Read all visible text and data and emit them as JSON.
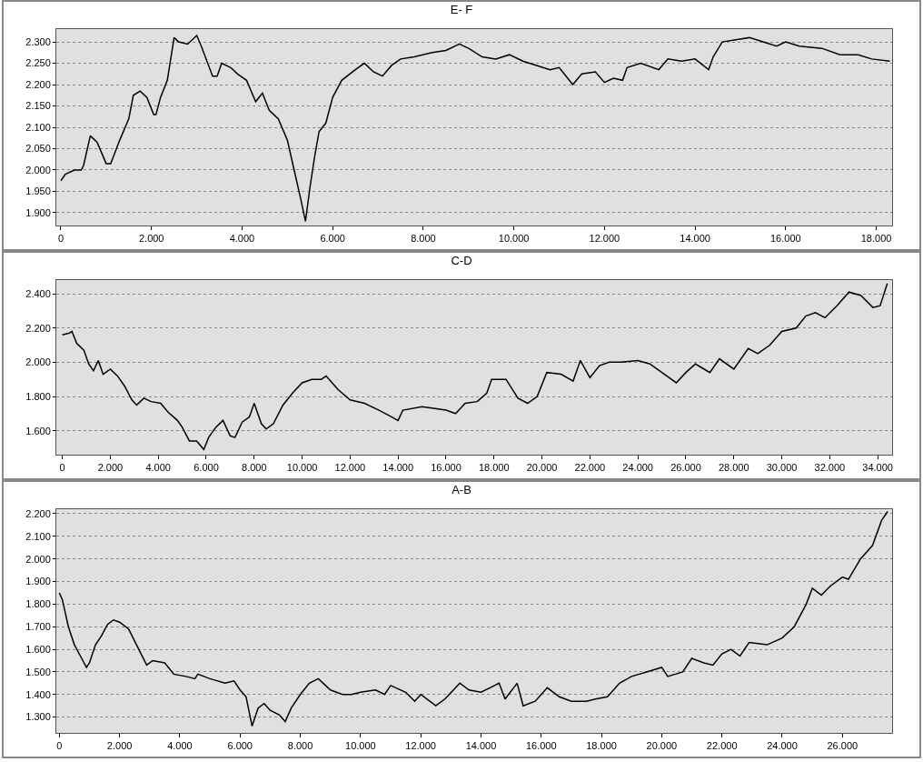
{
  "chart_data": [
    {
      "type": "line",
      "title": "E- F",
      "grid": "y",
      "marker": "none",
      "line_style": "solid",
      "xlim": [
        -100,
        18350
      ],
      "ylim": [
        1870,
        2330
      ],
      "xticks": [
        {
          "value": 0,
          "label": "0"
        },
        {
          "value": 2000,
          "label": "2.000"
        },
        {
          "value": 4000,
          "label": "4.000"
        },
        {
          "value": 6000,
          "label": "6.000"
        },
        {
          "value": 8000,
          "label": "8.000"
        },
        {
          "value": 10000,
          "label": "10.000"
        },
        {
          "value": 12000,
          "label": "12.000"
        },
        {
          "value": 14000,
          "label": "14.000"
        },
        {
          "value": 16000,
          "label": "16.000"
        },
        {
          "value": 18000,
          "label": "18.000"
        }
      ],
      "yticks": [
        {
          "value": 1900,
          "label": "1.900"
        },
        {
          "value": 1950,
          "label": "1.950"
        },
        {
          "value": 2000,
          "label": "2.000"
        },
        {
          "value": 2050,
          "label": "2.050"
        },
        {
          "value": 2100,
          "label": "2.100"
        },
        {
          "value": 2150,
          "label": "2.150"
        },
        {
          "value": 2200,
          "label": "2.200"
        },
        {
          "value": 2250,
          "label": "2.250"
        },
        {
          "value": 2300,
          "label": "2.300"
        }
      ],
      "series": [
        {
          "color": "#000000",
          "x": [
            0,
            100,
            300,
            450,
            500,
            650,
            800,
            1000,
            1100,
            1300,
            1500,
            1600,
            1750,
            1900,
            2050,
            2100,
            2200,
            2350,
            2500,
            2600,
            2800,
            3000,
            3100,
            3350,
            3450,
            3550,
            3750,
            3900,
            4100,
            4300,
            4450,
            4600,
            4800,
            5000,
            5150,
            5300,
            5400,
            5500,
            5600,
            5700,
            5850,
            6000,
            6200,
            6500,
            6700,
            6900,
            7100,
            7300,
            7500,
            7800,
            8200,
            8500,
            8800,
            9000,
            9300,
            9600,
            9900,
            10200,
            10500,
            10800,
            11000,
            11300,
            11500,
            11800,
            12000,
            12200,
            12400,
            12500,
            12800,
            13200,
            13400,
            13700,
            14000,
            14300,
            14400,
            14600,
            14900,
            15200,
            15500,
            15800,
            16000,
            16300,
            16800,
            17200,
            17600,
            17900,
            18300
          ],
          "values": [
            1975,
            1990,
            2000,
            2000,
            2010,
            2080,
            2065,
            2015,
            2015,
            2070,
            2120,
            2175,
            2185,
            2170,
            2130,
            2130,
            2170,
            2210,
            2310,
            2300,
            2295,
            2315,
            2290,
            2220,
            2220,
            2250,
            2240,
            2225,
            2210,
            2160,
            2180,
            2140,
            2120,
            2070,
            2000,
            1930,
            1880,
            1960,
            2030,
            2090,
            2110,
            2170,
            2210,
            2235,
            2250,
            2230,
            2220,
            2245,
            2260,
            2265,
            2275,
            2280,
            2295,
            2285,
            2265,
            2260,
            2270,
            2255,
            2245,
            2235,
            2240,
            2200,
            2225,
            2230,
            2205,
            2215,
            2210,
            2240,
            2250,
            2235,
            2260,
            2255,
            2260,
            2235,
            2265,
            2300,
            2305,
            2310,
            2300,
            2290,
            2300,
            2290,
            2285,
            2270,
            2270,
            2260,
            2255
          ]
        }
      ]
    },
    {
      "type": "line",
      "title": "C-D",
      "grid": "y",
      "marker": "none",
      "line_style": "solid",
      "xlim": [
        -250,
        34600
      ],
      "ylim": [
        1460,
        2480
      ],
      "xticks": [
        {
          "value": 0,
          "label": "0"
        },
        {
          "value": 2000,
          "label": "2.000"
        },
        {
          "value": 4000,
          "label": "4.000"
        },
        {
          "value": 6000,
          "label": "6.000"
        },
        {
          "value": 8000,
          "label": "8.000"
        },
        {
          "value": 10000,
          "label": "10.000"
        },
        {
          "value": 12000,
          "label": "12.000"
        },
        {
          "value": 14000,
          "label": "14.000"
        },
        {
          "value": 16000,
          "label": "16.000"
        },
        {
          "value": 18000,
          "label": "18.000"
        },
        {
          "value": 20000,
          "label": "20.000"
        },
        {
          "value": 22000,
          "label": "22.000"
        },
        {
          "value": 24000,
          "label": "24.000"
        },
        {
          "value": 26000,
          "label": "26.000"
        },
        {
          "value": 28000,
          "label": "28.000"
        },
        {
          "value": 30000,
          "label": "30.000"
        },
        {
          "value": 32000,
          "label": "32.000"
        },
        {
          "value": 34000,
          "label": "34.000"
        }
      ],
      "yticks": [
        {
          "value": 1600,
          "label": "1.600"
        },
        {
          "value": 1800,
          "label": "1.800"
        },
        {
          "value": 2000,
          "label": "2.000"
        },
        {
          "value": 2200,
          "label": "2.200"
        },
        {
          "value": 2400,
          "label": "2.400"
        }
      ],
      "series": [
        {
          "color": "#000000",
          "x": [
            0,
            300,
            400,
            600,
            900,
            1100,
            1300,
            1500,
            1700,
            2000,
            2300,
            2600,
            2900,
            3100,
            3400,
            3700,
            4100,
            4400,
            4800,
            5000,
            5300,
            5600,
            5900,
            6100,
            6400,
            6700,
            7000,
            7200,
            7500,
            7800,
            8000,
            8300,
            8500,
            8800,
            9200,
            9600,
            10000,
            10400,
            10800,
            11000,
            11500,
            12000,
            12600,
            13200,
            13600,
            14000,
            14200,
            15000,
            16000,
            16400,
            16800,
            17300,
            17700,
            17900,
            18500,
            19000,
            19400,
            19800,
            20200,
            20800,
            21300,
            21600,
            22000,
            22400,
            22800,
            23300,
            24000,
            24500,
            25000,
            25600,
            26000,
            26400,
            27000,
            27400,
            28000,
            28600,
            29000,
            29500,
            30000,
            30600,
            31000,
            31400,
            31800,
            32300,
            32800,
            33300,
            33800,
            34100,
            34400
          ],
          "values": [
            2160,
            2170,
            2180,
            2110,
            2070,
            1990,
            1950,
            2010,
            1930,
            1960,
            1920,
            1860,
            1780,
            1750,
            1790,
            1770,
            1760,
            1710,
            1660,
            1620,
            1540,
            1540,
            1490,
            1560,
            1620,
            1660,
            1570,
            1560,
            1650,
            1680,
            1760,
            1640,
            1610,
            1640,
            1750,
            1820,
            1880,
            1900,
            1900,
            1920,
            1840,
            1780,
            1760,
            1720,
            1690,
            1660,
            1720,
            1740,
            1720,
            1700,
            1760,
            1770,
            1820,
            1900,
            1900,
            1790,
            1760,
            1800,
            1940,
            1930,
            1890,
            2010,
            1910,
            1980,
            2000,
            2000,
            2010,
            1990,
            1940,
            1880,
            1940,
            1990,
            1940,
            2020,
            1960,
            2080,
            2050,
            2100,
            2180,
            2200,
            2270,
            2290,
            2260,
            2330,
            2410,
            2390,
            2320,
            2330,
            2460
          ]
        }
      ]
    },
    {
      "type": "line",
      "title": "A-B",
      "grid": "y",
      "marker": "none",
      "line_style": "solid",
      "xlim": [
        -100,
        27650
      ],
      "ylim": [
        1230,
        2220
      ],
      "xticks": [
        {
          "value": 0,
          "label": "0"
        },
        {
          "value": 2000,
          "label": "2.000"
        },
        {
          "value": 4000,
          "label": "4.000"
        },
        {
          "value": 6000,
          "label": "6.000"
        },
        {
          "value": 8000,
          "label": "8.000"
        },
        {
          "value": 10000,
          "label": "10.000"
        },
        {
          "value": 12000,
          "label": "12.000"
        },
        {
          "value": 14000,
          "label": "14.000"
        },
        {
          "value": 16000,
          "label": "16.000"
        },
        {
          "value": 18000,
          "label": "18.000"
        },
        {
          "value": 20000,
          "label": "20.000"
        },
        {
          "value": 22000,
          "label": "22.000"
        },
        {
          "value": 24000,
          "label": "24.000"
        },
        {
          "value": 26000,
          "label": "26.000"
        }
      ],
      "yticks": [
        {
          "value": 1300,
          "label": "1.300"
        },
        {
          "value": 1400,
          "label": "1.400"
        },
        {
          "value": 1500,
          "label": "1.500"
        },
        {
          "value": 1600,
          "label": "1.600"
        },
        {
          "value": 1700,
          "label": "1.700"
        },
        {
          "value": 1800,
          "label": "1.800"
        },
        {
          "value": 1900,
          "label": "1.900"
        },
        {
          "value": 2000,
          "label": "2.000"
        },
        {
          "value": 2100,
          "label": "2.100"
        },
        {
          "value": 2200,
          "label": "2.200"
        }
      ],
      "series": [
        {
          "color": "#000000",
          "x": [
            0,
            100,
            300,
            500,
            700,
            900,
            1000,
            1200,
            1400,
            1600,
            1800,
            2000,
            2300,
            2600,
            2900,
            3100,
            3500,
            3800,
            4200,
            4500,
            4600,
            5000,
            5500,
            5800,
            6000,
            6200,
            6400,
            6600,
            6800,
            7000,
            7300,
            7500,
            7700,
            8000,
            8300,
            8600,
            9000,
            9400,
            9700,
            10000,
            10500,
            10800,
            11000,
            11500,
            11800,
            12000,
            12300,
            12500,
            12800,
            13300,
            13600,
            14000,
            14300,
            14600,
            14800,
            15200,
            15400,
            15800,
            16200,
            16600,
            17000,
            17500,
            17800,
            18200,
            18600,
            19000,
            19500,
            20000,
            20200,
            20700,
            21000,
            21400,
            21700,
            22000,
            22300,
            22600,
            22900,
            23500,
            24000,
            24400,
            24800,
            25000,
            25300,
            25600,
            26000,
            26200,
            26600,
            27000,
            27300,
            27500
          ],
          "values": [
            1850,
            1820,
            1700,
            1620,
            1570,
            1520,
            1540,
            1620,
            1660,
            1710,
            1730,
            1720,
            1690,
            1610,
            1530,
            1550,
            1540,
            1490,
            1480,
            1470,
            1490,
            1470,
            1450,
            1460,
            1420,
            1390,
            1260,
            1340,
            1360,
            1330,
            1310,
            1280,
            1340,
            1400,
            1450,
            1470,
            1420,
            1400,
            1400,
            1410,
            1420,
            1400,
            1440,
            1410,
            1370,
            1400,
            1370,
            1350,
            1380,
            1450,
            1420,
            1410,
            1430,
            1450,
            1380,
            1450,
            1350,
            1370,
            1430,
            1390,
            1370,
            1370,
            1380,
            1390,
            1450,
            1480,
            1500,
            1520,
            1480,
            1500,
            1560,
            1540,
            1530,
            1580,
            1600,
            1570,
            1630,
            1620,
            1650,
            1700,
            1800,
            1870,
            1840,
            1880,
            1920,
            1910,
            2000,
            2060,
            2170,
            2210
          ]
        }
      ]
    }
  ]
}
